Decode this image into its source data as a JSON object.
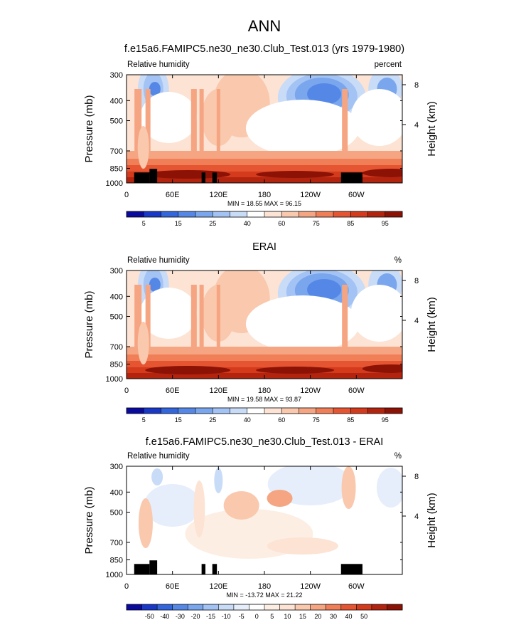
{
  "figure": {
    "title": "ANN"
  },
  "palettes": {
    "main": [
      "#0a0a9e",
      "#1a38c8",
      "#3366dd",
      "#5588e6",
      "#7aa6ee",
      "#a3c3f4",
      "#c8dcf8",
      "#ffffff",
      "#fce3d4",
      "#f9c8ad",
      "#f5a582",
      "#f07e57",
      "#e65532",
      "#d43a1c",
      "#b3240f",
      "#8c1206"
    ],
    "diff": [
      "#0a0a9e",
      "#1a38c8",
      "#3366dd",
      "#5588e6",
      "#7aa6ee",
      "#a3c3f4",
      "#c8dcf8",
      "#e6eefb",
      "#ffffff",
      "#fdeee4",
      "#fce3d4",
      "#f9c8ad",
      "#f5a582",
      "#f07e57",
      "#e65532",
      "#d43a1c",
      "#b3240f",
      "#8c1206"
    ]
  },
  "panels": [
    {
      "title": "f.e15a6.FAMIPC5.ne30_ne30.Club_Test.013 (yrs 1979-1980)",
      "left_label": "Relative humidity",
      "right_label": "percent",
      "stats": "MIN =  18.55  MAX =  96.15",
      "colorbar_labels": [
        "5",
        "15",
        "25",
        "40",
        "60",
        "75",
        "85",
        "95"
      ],
      "palette": "main",
      "terrain": true
    },
    {
      "title": "ERAI",
      "left_label": "Relative humidity",
      "right_label": "%",
      "stats": "MIN =  19.58  MAX =  93.87",
      "colorbar_labels": [
        "5",
        "15",
        "25",
        "40",
        "60",
        "75",
        "85",
        "95"
      ],
      "palette": "main",
      "terrain": false
    },
    {
      "title": "f.e15a6.FAMIPC5.ne30_ne30.Club_Test.013 - ERAI",
      "left_label": "Relative humidity",
      "right_label": "%",
      "stats": "MIN = -13.72  MAX =  21.22",
      "colorbar_labels": [
        "-50",
        "-40",
        "-30",
        "-20",
        "-15",
        "-10",
        "-5",
        "0",
        "5",
        "10",
        "15",
        "20",
        "30",
        "40",
        "50"
      ],
      "palette": "diff",
      "terrain": true
    }
  ],
  "axes": {
    "ylabel": "Pressure (mb)",
    "y2label": "Height (km)",
    "pressure_ticks": [
      "300",
      "400",
      "500",
      "700",
      "850",
      "1000"
    ],
    "height_ticks": [
      "8",
      "4"
    ],
    "lon_ticks": [
      "0",
      "60E",
      "120E",
      "180",
      "120W",
      "60W"
    ]
  },
  "chart_data": [
    {
      "type": "heatmap",
      "title": "f.e15a6.FAMIPC5.ne30_ne30.Club_Test.013 (yrs 1979-1980)",
      "variable": "Relative humidity",
      "units": "percent",
      "min": 18.55,
      "max": 96.15,
      "x": [
        "0",
        "60E",
        "120E",
        "180",
        "120W",
        "60W"
      ],
      "y": [
        300,
        400,
        500,
        700,
        850,
        1000
      ],
      "ylog": true,
      "levels": [
        5,
        10,
        15,
        20,
        25,
        30,
        40,
        50,
        60,
        65,
        70,
        75,
        80,
        85,
        90,
        95
      ]
    },
    {
      "type": "heatmap",
      "title": "ERAI",
      "variable": "Relative humidity",
      "units": "%",
      "min": 19.58,
      "max": 93.87,
      "x": [
        "0",
        "60E",
        "120E",
        "180",
        "120W",
        "60W"
      ],
      "y": [
        300,
        400,
        500,
        700,
        850,
        1000
      ],
      "ylog": true,
      "levels": [
        5,
        10,
        15,
        20,
        25,
        30,
        40,
        50,
        60,
        65,
        70,
        75,
        80,
        85,
        90,
        95
      ]
    },
    {
      "type": "heatmap",
      "title": "f.e15a6.FAMIPC5.ne30_ne30.Club_Test.013 - ERAI",
      "variable": "Relative humidity",
      "units": "%",
      "min": -13.72,
      "max": 21.22,
      "x": [
        "0",
        "60E",
        "120E",
        "180",
        "120W",
        "60W"
      ],
      "y": [
        300,
        400,
        500,
        700,
        850,
        1000
      ],
      "ylog": true,
      "levels": [
        -50,
        -40,
        -30,
        -20,
        -15,
        -10,
        -5,
        0,
        5,
        10,
        15,
        20,
        30,
        40,
        50
      ]
    }
  ]
}
